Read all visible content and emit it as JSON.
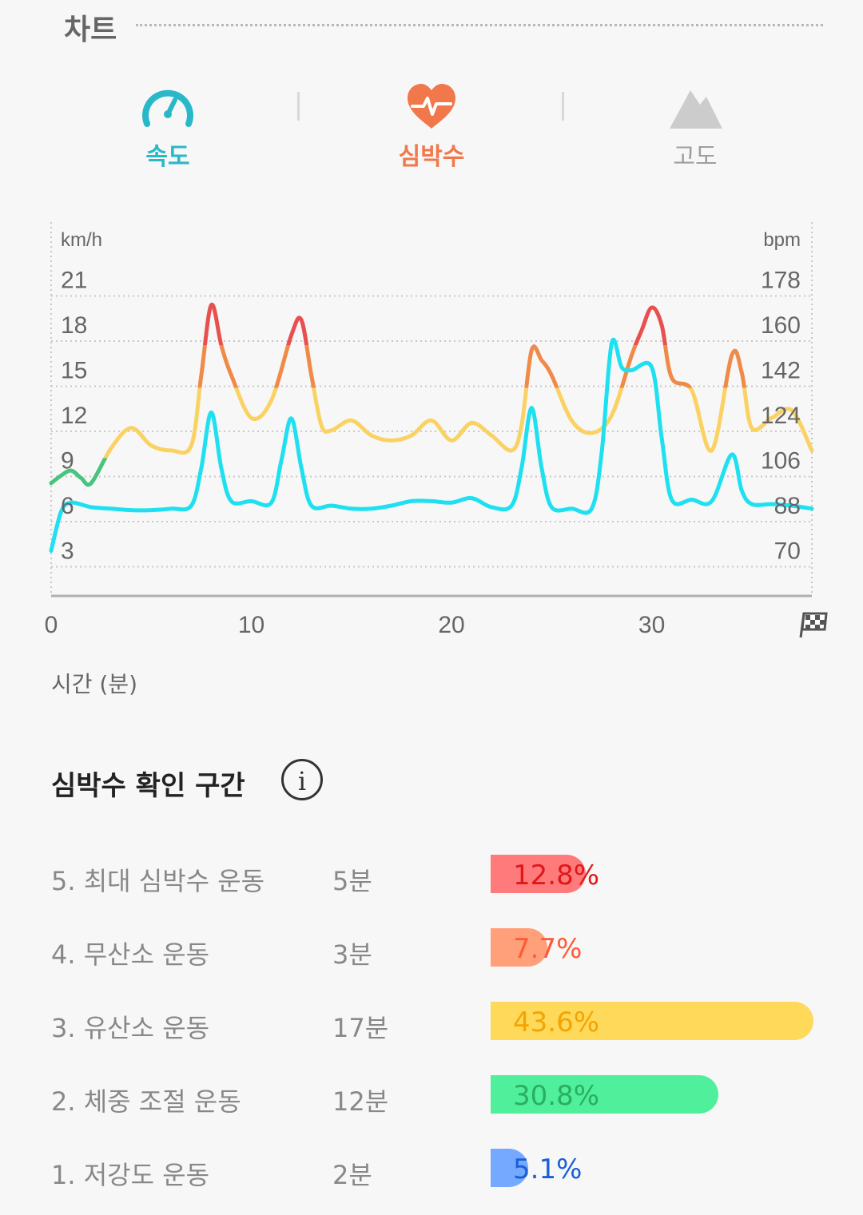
{
  "section": {
    "title": "차트"
  },
  "tabs": [
    {
      "id": "speed",
      "label": "속도",
      "icon": "speedometer-icon",
      "color": "#29b8c8"
    },
    {
      "id": "heart",
      "label": "심박수",
      "icon": "heart-rate-icon",
      "color": "#f0784a"
    },
    {
      "id": "altitude",
      "label": "고도",
      "icon": "mountain-icon",
      "color": "#9e9e9e"
    }
  ],
  "chart_data": {
    "type": "line",
    "xlabel": "시간 (분)",
    "xlim": [
      0,
      38
    ],
    "x_ticks": [
      "0",
      "10",
      "20",
      "30"
    ],
    "x_end_icon": "checkered-flag-icon",
    "y_left": {
      "label": "km/h",
      "ticks": [
        3,
        6,
        9,
        12,
        15,
        18,
        21
      ],
      "range": [
        0,
        24
      ]
    },
    "y_right": {
      "label": "bpm",
      "ticks": [
        70,
        88,
        106,
        124,
        142,
        160,
        178
      ],
      "range": [
        52,
        196
      ]
    },
    "grid": true,
    "series": [
      {
        "role": "speed",
        "axis": "left",
        "color": "#1ee0f0",
        "x": [
          0,
          0.5,
          1,
          2,
          3,
          4,
          5,
          6,
          7,
          7.5,
          8,
          8.5,
          9,
          10,
          11,
          11.5,
          12,
          12.5,
          13,
          14,
          15,
          16,
          17,
          18,
          19,
          20,
          21,
          22,
          23,
          23.5,
          24,
          24.5,
          25,
          26,
          27,
          27.5,
          28,
          28.5,
          29,
          30,
          30.5,
          31,
          32,
          33,
          34,
          34.5,
          35,
          36,
          37,
          38
        ],
        "y": [
          3.0,
          5.6,
          6.2,
          5.9,
          5.8,
          5.7,
          5.7,
          5.8,
          6.0,
          8.5,
          12.2,
          8.5,
          6.3,
          6.3,
          6.2,
          9.0,
          11.8,
          8.5,
          6.0,
          6.0,
          5.8,
          5.8,
          6.0,
          6.3,
          6.3,
          6.2,
          6.5,
          5.9,
          6.0,
          8.5,
          12.5,
          8.5,
          5.9,
          5.8,
          5.8,
          9.5,
          16.8,
          15.2,
          15.0,
          15.2,
          10.5,
          6.4,
          6.4,
          6.3,
          9.4,
          7.0,
          6.1,
          6.1,
          6.0,
          5.8
        ]
      },
      {
        "role": "heart-rate",
        "axis": "right",
        "color_zones": [
          {
            "min": 52,
            "max": 107,
            "color": "#48c47e"
          },
          {
            "min": 107,
            "max": 135,
            "color": "#fad264"
          },
          {
            "min": 135,
            "max": 152,
            "color": "#f08a48"
          },
          {
            "min": 152,
            "max": 196,
            "color": "#e85050"
          }
        ],
        "x": [
          0,
          0.5,
          1,
          1.5,
          2,
          3,
          4,
          5,
          6,
          7,
          7.5,
          8,
          8.5,
          9,
          10,
          11,
          12,
          12.5,
          13,
          13.5,
          14,
          15,
          16,
          17,
          18,
          19,
          20,
          21,
          22,
          23,
          23.5,
          24,
          24.5,
          25,
          26,
          27,
          28,
          29,
          29.5,
          30,
          30.5,
          31,
          32,
          33,
          34,
          34.5,
          35,
          36,
          37,
          38
        ],
        "y": [
          97,
          100,
          102,
          99,
          97,
          111,
          119,
          112,
          110,
          112,
          140,
          168,
          152,
          140,
          123,
          130,
          156,
          162,
          140,
          120,
          118,
          122,
          116,
          114,
          116,
          122,
          114,
          121,
          116,
          110,
          120,
          150,
          146,
          140,
          122,
          117,
          124,
          148,
          158,
          167,
          160,
          139,
          134,
          110,
          148,
          141,
          119,
          123,
          126,
          110
        ]
      }
    ]
  },
  "zones": {
    "title": "심박수 확인 구간",
    "info_icon": "info-icon",
    "items": [
      {
        "name": "5. 최대 심박수 운동",
        "time": "5분",
        "percent": "12.8%",
        "fraction": 0.128,
        "bar_color": "#ff7b7b",
        "text_color": "#e0171c"
      },
      {
        "name": "4. 무산소 운동",
        "time": "3분",
        "percent": "7.7%",
        "fraction": 0.077,
        "bar_color": "#ffa07a",
        "text_color": "#ff5a36"
      },
      {
        "name": "3. 유산소 운동",
        "time": "17분",
        "percent": "43.6%",
        "fraction": 0.436,
        "bar_color": "#ffd95a",
        "text_color": "#f5a300"
      },
      {
        "name": "2. 체중 조절 운동",
        "time": "12분",
        "percent": "30.8%",
        "fraction": 0.308,
        "bar_color": "#4fef9c",
        "text_color": "#2bae5f"
      },
      {
        "name": "1. 저강도 운동",
        "time": "2분",
        "percent": "5.1%",
        "fraction": 0.051,
        "bar_color": "#75a8ff",
        "text_color": "#1a5fd6"
      }
    ]
  }
}
